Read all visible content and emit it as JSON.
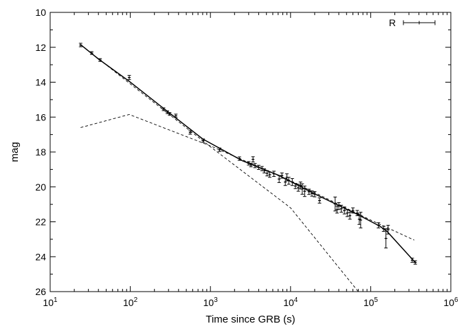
{
  "chart_data": {
    "type": "scatter",
    "xlabel": "Time since GRB (s)",
    "ylabel": "mag",
    "x_scale": "log",
    "y_inverted": true,
    "xlim": [
      10,
      1000000
    ],
    "ylim": [
      10,
      26
    ],
    "x_ticks": [
      {
        "value": 10,
        "base": "10",
        "exp": "1"
      },
      {
        "value": 100,
        "base": "10",
        "exp": "2"
      },
      {
        "value": 1000,
        "base": "10",
        "exp": "3"
      },
      {
        "value": 10000,
        "base": "10",
        "exp": "4"
      },
      {
        "value": 100000,
        "base": "10",
        "exp": "5"
      },
      {
        "value": 1000000,
        "base": "10",
        "exp": "6"
      }
    ],
    "y_ticks": [
      "10",
      "12",
      "14",
      "16",
      "18",
      "20",
      "22",
      "24",
      "26"
    ],
    "grid": false,
    "legend": {
      "placement": "top-right",
      "entries": [
        "R"
      ]
    },
    "series": [
      {
        "name": "R",
        "style": "points-with-errorbars",
        "points": [
          [
            24,
            11.87,
            0.1
          ],
          [
            33,
            12.33,
            0.08
          ],
          [
            42,
            12.73,
            0.08
          ],
          [
            97,
            13.73,
            0.12
          ],
          [
            260,
            15.55,
            0.08
          ],
          [
            290,
            15.72,
            0.08
          ],
          [
            310,
            15.82,
            0.08
          ],
          [
            370,
            15.93,
            0.1
          ],
          [
            560,
            16.88,
            0.1
          ],
          [
            810,
            17.35,
            0.1
          ],
          [
            1300,
            17.87,
            0.1
          ],
          [
            2300,
            18.38,
            0.1
          ],
          [
            3000,
            18.65,
            0.1
          ],
          [
            3200,
            18.75,
            0.1
          ],
          [
            3400,
            18.42,
            0.15
          ],
          [
            3600,
            18.78,
            0.12
          ],
          [
            4000,
            18.88,
            0.12
          ],
          [
            4400,
            18.95,
            0.12
          ],
          [
            4700,
            19.08,
            0.12
          ],
          [
            5100,
            19.22,
            0.15
          ],
          [
            5500,
            19.3,
            0.15
          ],
          [
            6200,
            19.25,
            0.15
          ],
          [
            7200,
            19.55,
            0.2
          ],
          [
            7800,
            19.35,
            0.15
          ],
          [
            8600,
            19.72,
            0.2
          ],
          [
            9000,
            19.45,
            0.2
          ],
          [
            9500,
            19.65,
            0.2
          ],
          [
            10500,
            19.72,
            0.2
          ],
          [
            11500,
            19.95,
            0.15
          ],
          [
            12500,
            20.05,
            0.2
          ],
          [
            13300,
            19.92,
            0.2
          ],
          [
            14000,
            20.12,
            0.3
          ],
          [
            15000,
            20.25,
            0.3
          ],
          [
            17000,
            20.28,
            0.15
          ],
          [
            18500,
            20.38,
            0.15
          ],
          [
            20000,
            20.42,
            0.15
          ],
          [
            23000,
            20.78,
            0.15
          ],
          [
            36000,
            20.98,
            0.4
          ],
          [
            38000,
            21.3,
            0.2
          ],
          [
            40000,
            21.1,
            0.2
          ],
          [
            43000,
            21.25,
            0.2
          ],
          [
            47000,
            21.35,
            0.2
          ],
          [
            51000,
            21.5,
            0.2
          ],
          [
            55000,
            21.65,
            0.2
          ],
          [
            60000,
            21.35,
            0.15
          ],
          [
            68000,
            21.5,
            0.15
          ],
          [
            72000,
            21.85,
            0.3
          ],
          [
            75000,
            21.9,
            0.45
          ],
          [
            125000,
            22.2,
            0.15
          ],
          [
            145000,
            22.4,
            0.15
          ],
          [
            155000,
            22.95,
            0.55
          ],
          [
            165000,
            22.45,
            0.25
          ],
          [
            330000,
            24.2,
            0.12
          ],
          [
            360000,
            24.33,
            0.1
          ]
        ]
      },
      {
        "style": "solid-line",
        "points": [
          [
            24,
            11.85
          ],
          [
            40,
            12.67
          ],
          [
            97,
            13.95
          ],
          [
            260,
            15.5
          ],
          [
            800,
            17.25
          ],
          [
            2500,
            18.5
          ],
          [
            7000,
            19.32
          ],
          [
            20000,
            20.4
          ],
          [
            70000,
            21.6
          ],
          [
            130000,
            22.25
          ],
          [
            160000,
            22.55
          ],
          [
            360000,
            24.33
          ]
        ]
      },
      {
        "style": "dashed-line",
        "points": [
          [
            24,
            11.85
          ],
          [
            100,
            14.1
          ],
          [
            1000,
            17.7
          ],
          [
            10000,
            21.2
          ],
          [
            70000,
            26
          ]
        ]
      },
      {
        "style": "dashed-line",
        "points": [
          [
            24,
            16.6
          ],
          [
            97,
            15.85
          ],
          [
            1000,
            17.65
          ],
          [
            10000,
            19.65
          ],
          [
            100000,
            21.9
          ],
          [
            350000,
            23.05
          ]
        ]
      }
    ]
  }
}
